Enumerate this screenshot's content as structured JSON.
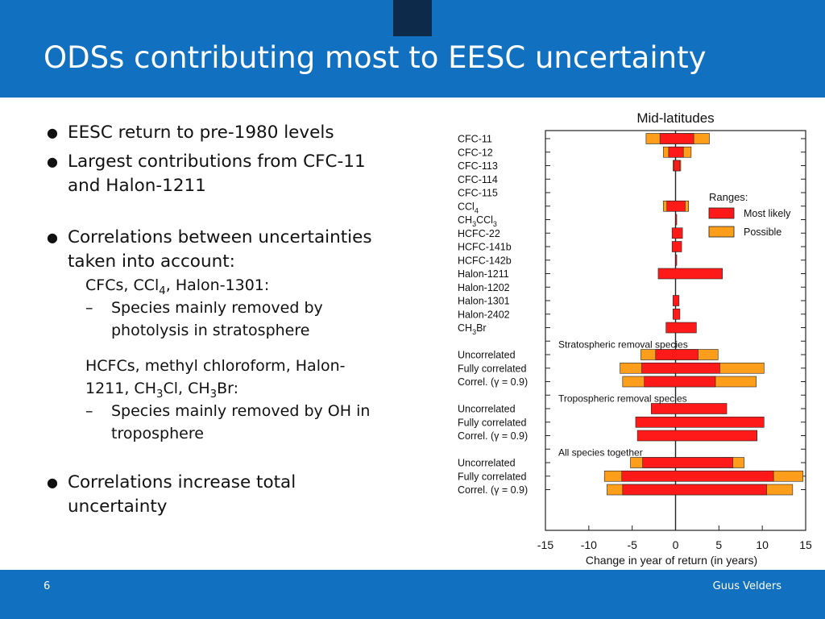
{
  "slide": {
    "title": "ODSs contributing most to EESC uncertainty",
    "page_number": "6",
    "author": "Guus Velders"
  },
  "content": {
    "bullet_1": "EESC return to pre-1980 levels",
    "bullet_2a": "Largest contributions from CFC-11",
    "bullet_2b": "and Halon-1211",
    "bullet_3a": "Correlations between uncertainties",
    "bullet_3b": "taken into account:",
    "sub_1_pre": "CFCs, CCl",
    "sub_1_sub": "4",
    "sub_1_post": ", Halon-1301:",
    "dash_1a": "Species mainly removed by",
    "dash_1b": "photolysis in stratosphere",
    "sub_2a": "HCFCs, methyl chloroform, Halon-",
    "sub_2b_1": "1211, CH",
    "sub_2b_2": "3",
    "sub_2b_3": "Cl, CH",
    "sub_2b_4": "3",
    "sub_2b_5": "Br:",
    "dash_2a": "Species mainly removed by OH in",
    "dash_2b": "troposphere",
    "bullet_4a": "Correlations increase total",
    "bullet_4b": "uncertainty",
    "bullet_symbol": "●",
    "dash_symbol": "–"
  },
  "chart_data": {
    "type": "bar",
    "title": "Mid-latitudes",
    "xlabel": "Change in year of return (in years)",
    "xlim": [
      -15,
      15
    ],
    "xticks": [
      -15,
      -10,
      -5,
      0,
      5,
      10,
      15
    ],
    "grid": false,
    "legend": {
      "title": "Ranges:",
      "placement": "right",
      "entries": [
        {
          "label": "Most likely",
          "color": "#ff1a1a"
        },
        {
          "label": "Possible",
          "color": "#ff9e1b"
        }
      ]
    },
    "colors": {
      "most_likely": "#ff1a1a",
      "possible": "#ff9e1b",
      "edge": "#222222"
    },
    "section_labels": [
      "Stratospheric removal   species",
      "Tropospheric removal   species",
      "All species together"
    ],
    "rows": [
      {
        "label": "CFC-11",
        "likely": [
          -1.8,
          2.1
        ],
        "possible": [
          -3.4,
          3.9
        ]
      },
      {
        "label": "CFC-12",
        "likely": [
          -0.8,
          0.9
        ],
        "possible": [
          -1.4,
          1.8
        ]
      },
      {
        "label": "CFC-113",
        "likely": [
          -0.2,
          0.5
        ],
        "possible": [
          -0.3,
          0.6
        ]
      },
      {
        "label": "CFC-114",
        "likely": null,
        "possible": null
      },
      {
        "label": "CFC-115",
        "likely": null,
        "possible": null
      },
      {
        "label": "CCl4",
        "likely": [
          -1.0,
          1.1
        ],
        "possible": [
          -1.4,
          1.5
        ]
      },
      {
        "label": "CH3CCl3",
        "likely": [
          0,
          0.1
        ],
        "possible": null
      },
      {
        "label": "HCFC-22",
        "likely": [
          -0.4,
          0.8
        ],
        "possible": null
      },
      {
        "label": "HCFC-141b",
        "likely": [
          -0.4,
          0.7
        ],
        "possible": null
      },
      {
        "label": "HCFC-142b",
        "likely": [
          0,
          0.1
        ],
        "possible": null
      },
      {
        "label": "Halon-1211",
        "likely": [
          -2.0,
          5.4
        ],
        "possible": null
      },
      {
        "label": "Halon-1202",
        "likely": null,
        "possible": null
      },
      {
        "label": "Halon-1301",
        "likely": [
          -0.3,
          0.4
        ],
        "possible": null
      },
      {
        "label": "Halon-2402",
        "likely": [
          -0.3,
          0.5
        ],
        "possible": null
      },
      {
        "label": "CH3Br",
        "likely": [
          -1.1,
          2.4
        ],
        "possible": null
      },
      {
        "label": "",
        "likely": null,
        "possible": null
      },
      {
        "label": "Uncorrelated",
        "likely": [
          -2.3,
          2.6
        ],
        "possible": [
          -4.0,
          4.9
        ]
      },
      {
        "label": "Fully correlated",
        "likely": [
          -3.9,
          5.1
        ],
        "possible": [
          -6.4,
          10.2
        ]
      },
      {
        "label": "Correl. (γ = 0.9)",
        "likely": [
          -3.6,
          4.6
        ],
        "possible": [
          -6.1,
          9.3
        ]
      },
      {
        "label": "",
        "likely": null,
        "possible": null
      },
      {
        "label": "Uncorrelated",
        "likely": [
          -2.8,
          5.9
        ],
        "possible": null
      },
      {
        "label": "Fully correlated",
        "likely": [
          -4.6,
          10.2
        ],
        "possible": null
      },
      {
        "label": "Correl. (γ = 0.9)",
        "likely": [
          -4.4,
          9.4
        ],
        "possible": null
      },
      {
        "label": "",
        "likely": null,
        "possible": null
      },
      {
        "label": "Uncorrelated",
        "likely": [
          -3.8,
          6.6
        ],
        "possible": [
          -5.2,
          7.9
        ]
      },
      {
        "label": "Fully correlated",
        "likely": [
          -6.2,
          11.3
        ],
        "possible": [
          -8.2,
          14.7
        ]
      },
      {
        "label": "Correl. (γ = 0.9)",
        "likely": [
          -6.1,
          10.5
        ],
        "possible": [
          -7.9,
          13.5
        ]
      }
    ]
  }
}
